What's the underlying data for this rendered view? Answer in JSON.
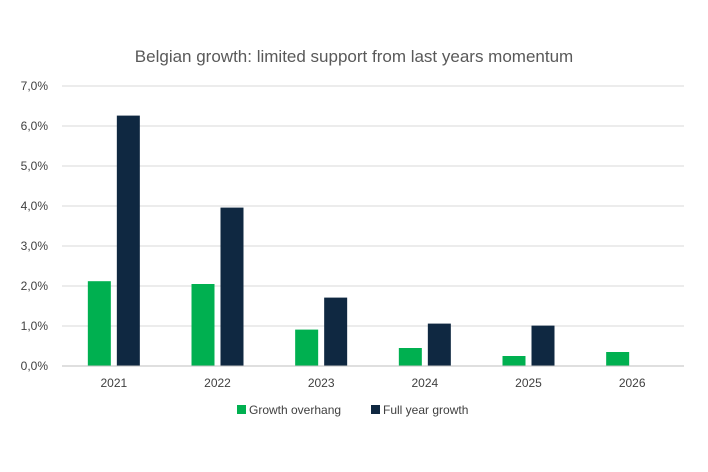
{
  "chart_data": {
    "type": "bar",
    "title": "Belgian growth: limited support from last years momentum",
    "categories": [
      "2021",
      "2022",
      "2023",
      "2024",
      "2025",
      "2026"
    ],
    "series": [
      {
        "name": "Growth overhang",
        "color": "#00b050",
        "values": [
          2.12,
          2.05,
          0.91,
          0.45,
          0.25,
          0.35
        ]
      },
      {
        "name": "Full year growth",
        "color": "#0f2841",
        "values": [
          6.26,
          3.96,
          1.71,
          1.06,
          1.01,
          null
        ]
      }
    ],
    "ylim": [
      0,
      7
    ],
    "ytick_step": 1,
    "ytick_labels": [
      "0,0%",
      "1,0%",
      "2,0%",
      "3,0%",
      "4,0%",
      "5,0%",
      "6,0%",
      "7,0%"
    ],
    "xlabel": "",
    "ylabel": "",
    "grid": true,
    "legend_position": "bottom"
  }
}
